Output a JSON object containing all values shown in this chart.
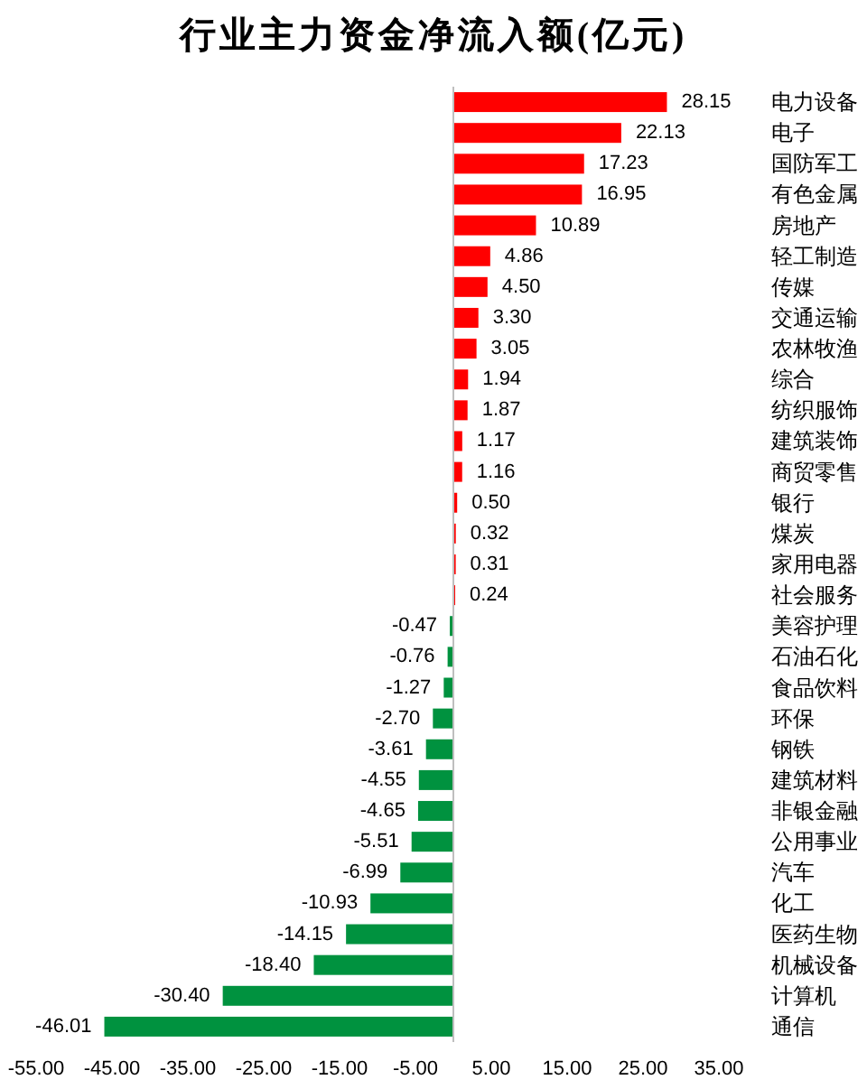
{
  "chart_data": {
    "type": "bar",
    "orientation": "horizontal",
    "title": "行业主力资金净流入额(亿元)",
    "categories": [
      "电力设备",
      "电子",
      "国防军工",
      "有色金属",
      "房地产",
      "轻工制造",
      "传媒",
      "交通运输",
      "农林牧渔",
      "综合",
      "纺织服饰",
      "建筑装饰",
      "商贸零售",
      "银行",
      "煤炭",
      "家用电器",
      "社会服务",
      "美容护理",
      "石油石化",
      "食品饮料",
      "环保",
      "钢铁",
      "建筑材料",
      "非银金融",
      "公用事业",
      "汽车",
      "化工",
      "医药生物",
      "机械设备",
      "计算机",
      "通信"
    ],
    "values": [
      28.15,
      22.13,
      17.23,
      16.95,
      10.89,
      4.86,
      4.5,
      3.3,
      3.05,
      1.94,
      1.87,
      1.17,
      1.16,
      0.5,
      0.32,
      0.31,
      0.24,
      -0.47,
      -0.76,
      -1.27,
      -2.7,
      -3.61,
      -4.55,
      -4.65,
      -5.51,
      -6.99,
      -10.93,
      -14.15,
      -18.4,
      -30.4,
      -46.01
    ],
    "value_labels": [
      "28.15",
      "22.13",
      "17.23",
      "16.95",
      "10.89",
      "4.86",
      "4.50",
      "3.30",
      "3.05",
      "1.94",
      "1.87",
      "1.17",
      "1.16",
      "0.50",
      "0.32",
      "0.31",
      "0.24",
      "-0.47",
      "-0.76",
      "-1.27",
      "-2.70",
      "-3.61",
      "-4.55",
      "-4.65",
      "-5.51",
      "-6.99",
      "-10.93",
      "-14.15",
      "-18.40",
      "-30.40",
      "-46.01"
    ],
    "colors": [
      "#ff0000",
      "#ff0000",
      "#ff0000",
      "#ff0000",
      "#ff0000",
      "#ff0000",
      "#ff0000",
      "#ff0000",
      "#ff0000",
      "#ff0000",
      "#ff0000",
      "#ff0000",
      "#ff0000",
      "#ff0000",
      "#ff0000",
      "#ff0000",
      "#ff0000",
      "#00923f",
      "#00923f",
      "#00923f",
      "#00923f",
      "#00923f",
      "#00923f",
      "#00923f",
      "#00923f",
      "#00923f",
      "#00923f",
      "#00923f",
      "#00923f",
      "#00923f",
      "#00923f"
    ],
    "xlim": [
      -55,
      35
    ],
    "xticks": [
      {
        "value": -55,
        "label": "-55.00"
      },
      {
        "value": -45,
        "label": "-45.00"
      },
      {
        "value": -35,
        "label": "-35.00"
      },
      {
        "value": -25,
        "label": "-25.00"
      },
      {
        "value": -15,
        "label": "-15.00"
      },
      {
        "value": -5,
        "label": "-5.00"
      },
      {
        "value": 5,
        "label": "5.00"
      },
      {
        "value": 15,
        "label": "15.00"
      },
      {
        "value": 25,
        "label": "25.00"
      },
      {
        "value": 35,
        "label": "35.00"
      }
    ]
  }
}
